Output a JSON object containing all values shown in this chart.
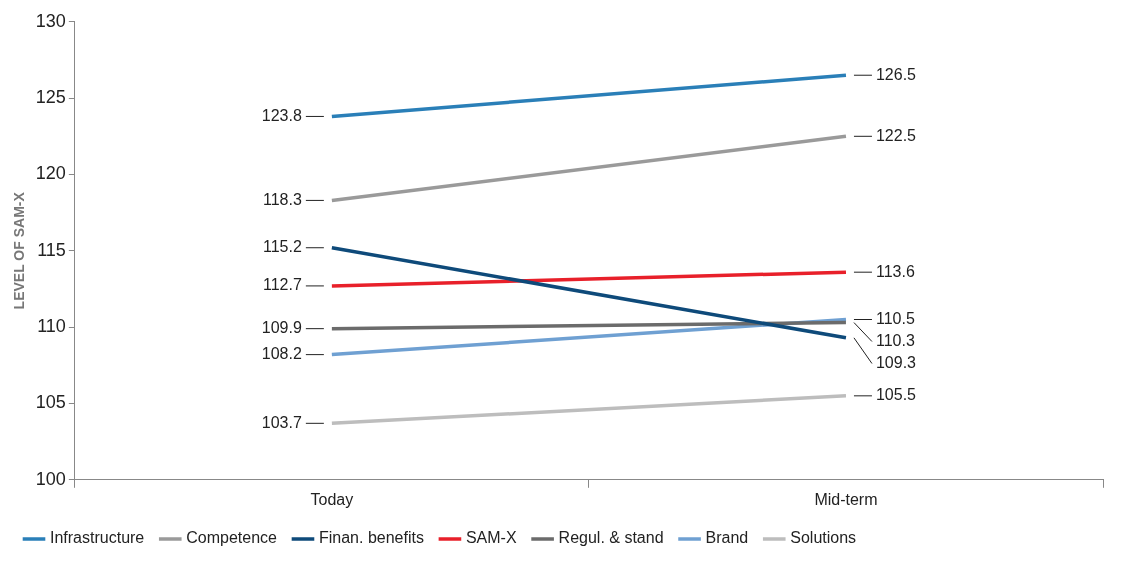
{
  "chart_data": {
    "type": "line",
    "ylabel": "LEVEL OF SAM-X",
    "categories": [
      "Today",
      "Mid-term"
    ],
    "ylim": [
      100,
      130
    ],
    "yticks": [
      100,
      105,
      110,
      115,
      120,
      125,
      130
    ],
    "grid": false,
    "legend": "bottom left",
    "marker": "none",
    "line_style": "solid",
    "data_labels": true,
    "series": [
      {
        "name": "Infrastructure",
        "color": "#2a7fb8",
        "values": [
          123.8,
          126.5
        ]
      },
      {
        "name": "Competence",
        "color": "#9a9a9a",
        "values": [
          118.3,
          122.5
        ]
      },
      {
        "name": "Finan. benefits",
        "color": "#0e4a7a",
        "values": [
          115.2,
          109.3
        ]
      },
      {
        "name": "SAM-X",
        "color": "#e8202a",
        "values": [
          112.7,
          113.6
        ]
      },
      {
        "name": "Regul. & stand",
        "color": "#6b6b6b",
        "values": [
          109.9,
          110.3
        ]
      },
      {
        "name": "Brand",
        "color": "#6fa0d2",
        "values": [
          108.2,
          110.5
        ]
      },
      {
        "name": "Solutions",
        "color": "#bdbdbd",
        "values": [
          103.7,
          105.5
        ]
      }
    ]
  }
}
